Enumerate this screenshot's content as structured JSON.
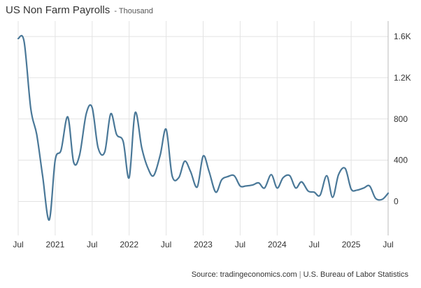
{
  "header": {
    "title": "US Non Farm Payrolls",
    "unit": "- Thousand"
  },
  "footer": {
    "source": "Source: tradingeconomics.com",
    "separator": "|",
    "agency": "U.S. Bureau of Labor Statistics"
  },
  "colors": {
    "line": "#4a7898",
    "grid": "#e3e3e3",
    "axis": "#333333"
  },
  "chart_data": {
    "type": "line",
    "title": "US Non Farm Payrolls",
    "ylabel": "Thousand",
    "xlabel": "",
    "ylim": [
      -330,
      1750
    ],
    "yticks": [
      0,
      400,
      800,
      1200,
      1600
    ],
    "ytick_labels": [
      "0",
      "400",
      "800",
      "1.2K",
      "1.6K"
    ],
    "xlim": [
      2020.5,
      2025.5
    ],
    "xticks": [
      2020.5,
      2021.0,
      2021.5,
      2022.0,
      2022.5,
      2023.0,
      2023.5,
      2024.0,
      2024.5,
      2025.0,
      2025.5
    ],
    "xtick_labels": [
      "Jul",
      "2021",
      "Jul",
      "2022",
      "Jul",
      "2023",
      "Jul",
      "2024",
      "Jul",
      "2025",
      "Jul"
    ],
    "grid": true,
    "series": [
      {
        "name": "US Non Farm Payrolls",
        "x": [
          2020.5,
          2020.58,
          2020.67,
          2020.75,
          2020.83,
          2020.92,
          2021.0,
          2021.08,
          2021.17,
          2021.25,
          2021.33,
          2021.42,
          2021.5,
          2021.58,
          2021.67,
          2021.75,
          2021.83,
          2021.92,
          2022.0,
          2022.08,
          2022.17,
          2022.25,
          2022.33,
          2022.42,
          2022.5,
          2022.58,
          2022.67,
          2022.75,
          2022.83,
          2022.92,
          2023.0,
          2023.08,
          2023.17,
          2023.25,
          2023.33,
          2023.42,
          2023.5,
          2023.58,
          2023.67,
          2023.75,
          2023.83,
          2023.92,
          2024.0,
          2024.08,
          2024.17,
          2024.25,
          2024.33,
          2024.42,
          2024.5,
          2024.58,
          2024.67,
          2024.75,
          2024.83,
          2024.92,
          2025.0,
          2025.08,
          2025.17,
          2025.25,
          2025.33,
          2025.42,
          2025.5
        ],
        "values": [
          1580,
          1550,
          900,
          650,
          250,
          -180,
          400,
          500,
          820,
          380,
          450,
          850,
          910,
          520,
          480,
          850,
          650,
          580,
          230,
          860,
          520,
          330,
          250,
          450,
          700,
          250,
          230,
          390,
          290,
          140,
          440,
          290,
          90,
          210,
          240,
          250,
          150,
          150,
          160,
          180,
          130,
          260,
          130,
          230,
          250,
          130,
          190,
          100,
          90,
          60,
          250,
          40,
          260,
          320,
          120,
          110,
          130,
          150,
          30,
          20,
          80
        ]
      }
    ]
  }
}
